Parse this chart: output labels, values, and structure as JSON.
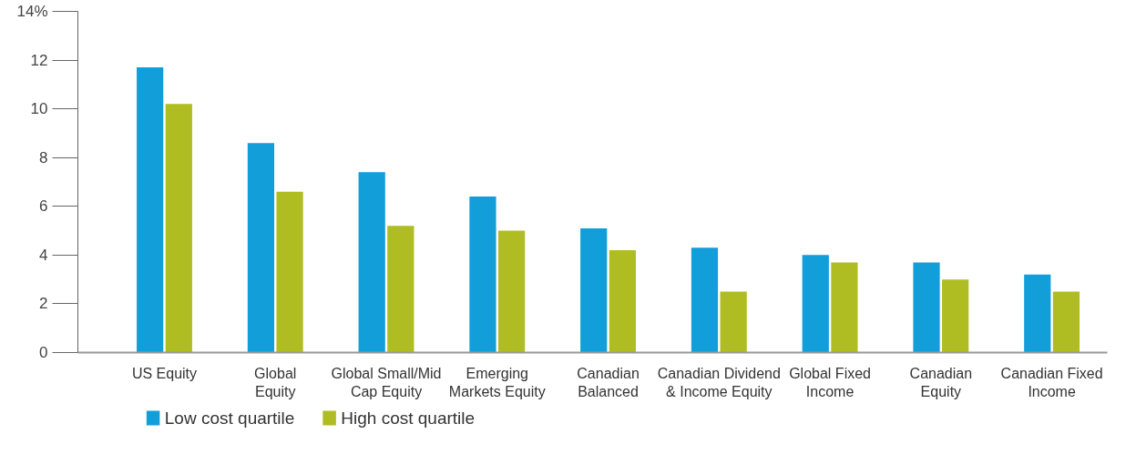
{
  "chart_data": {
    "type": "bar",
    "categories": [
      "US Equity",
      "Global\nEquity",
      "Global Small/Mid\nCap Equity",
      "Emerging\nMarkets Equity",
      "Canadian\nBalanced",
      "Canadian Dividend\n& Income Equity",
      "Global Fixed\nIncome",
      "Canadian\nEquity",
      "Canadian Fixed\nIncome"
    ],
    "series": [
      {
        "name": "Low cost quartile",
        "color": "#129ed9",
        "values": [
          11.7,
          8.6,
          7.4,
          6.4,
          5.1,
          4.3,
          4.0,
          3.7,
          3.2
        ]
      },
      {
        "name": "High cost quartile",
        "color": "#afbd22",
        "values": [
          10.2,
          6.6,
          5.2,
          5.0,
          4.2,
          2.5,
          3.7,
          3.0,
          2.5
        ]
      }
    ],
    "ylim": [
      0,
      14
    ],
    "yticks": [
      0,
      2,
      4,
      6,
      8,
      10,
      12,
      {
        "value": 14,
        "label": "14%"
      }
    ],
    "grid": false,
    "legend": "bottom left"
  }
}
